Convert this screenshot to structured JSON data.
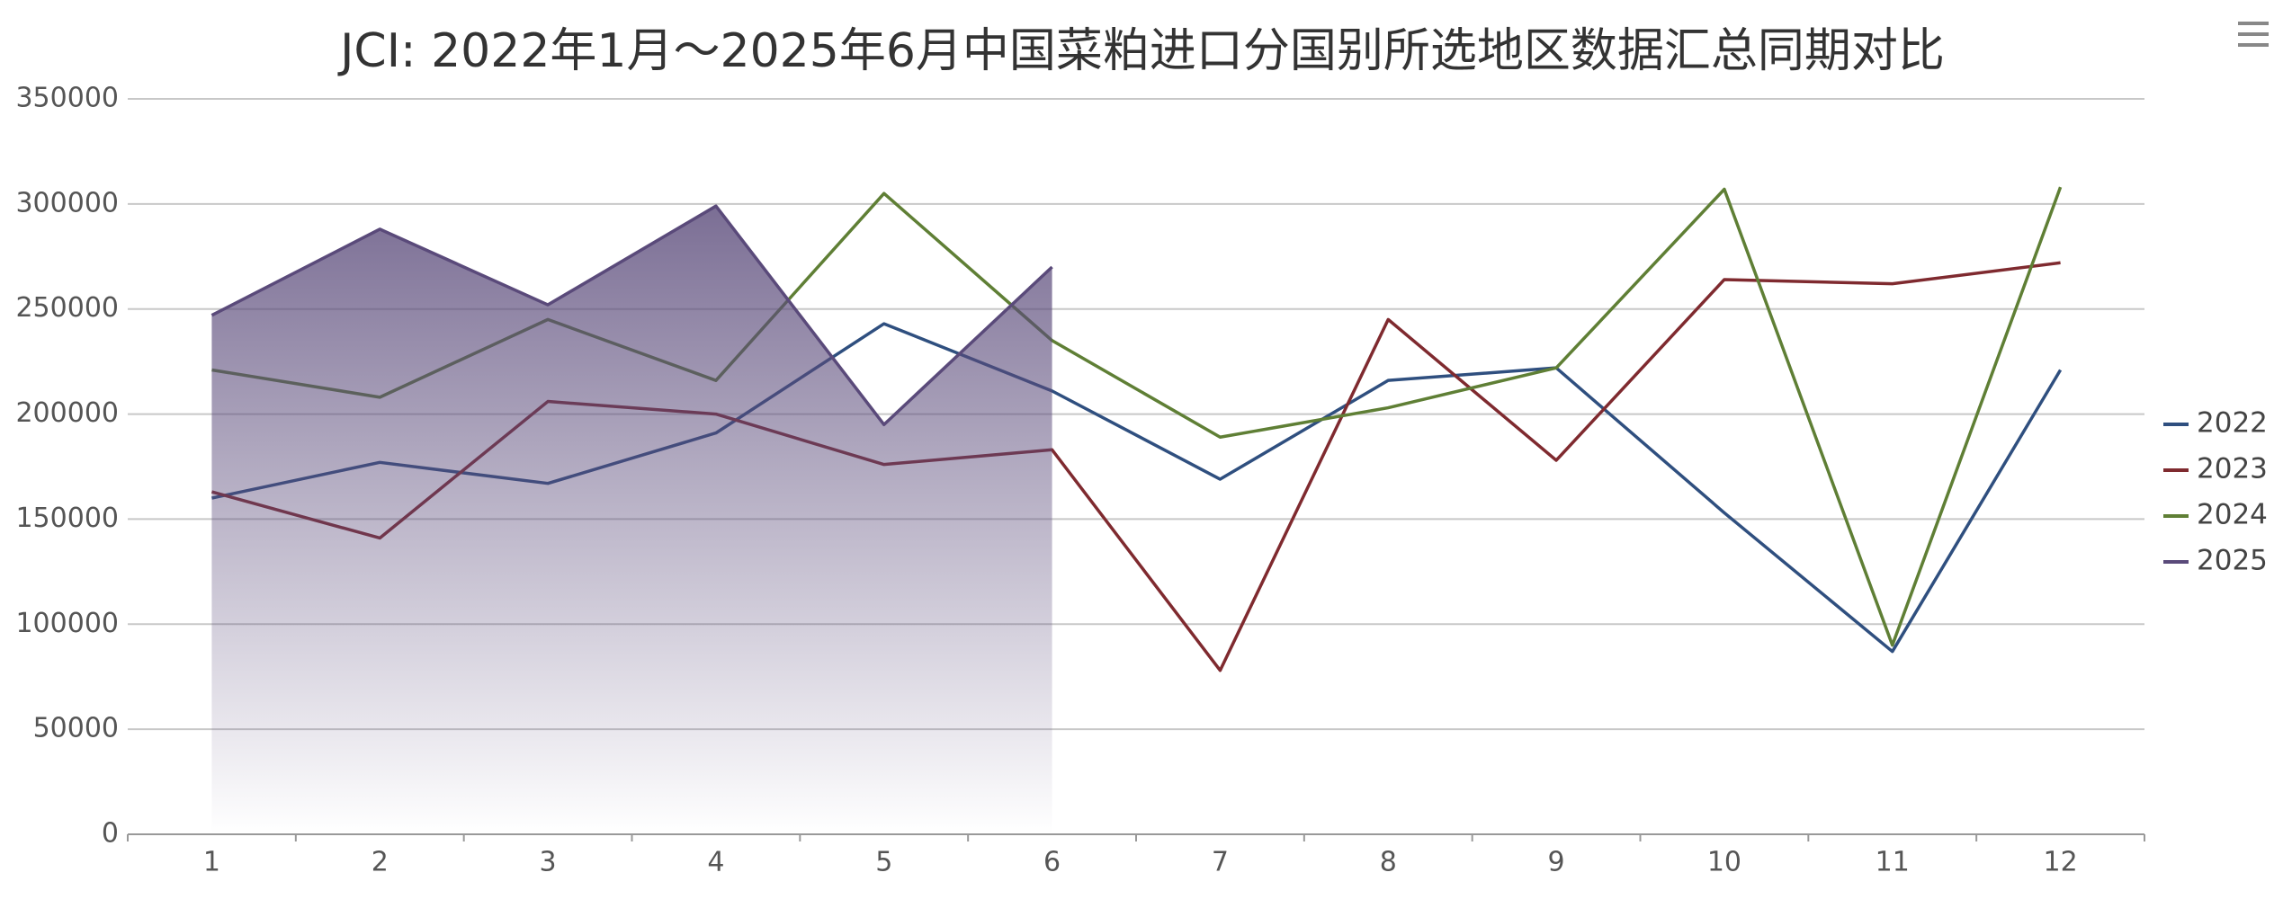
{
  "chart_data": {
    "type": "line",
    "title": "JCI: 2022年1月～2025年6月中国菜粕进口分国别所选地区数据汇总同期对比",
    "categories": [
      "1",
      "2",
      "3",
      "4",
      "5",
      "6",
      "7",
      "8",
      "9",
      "10",
      "11",
      "12"
    ],
    "series": [
      {
        "name": "2022",
        "color": "#2f4f7f",
        "values": [
          160000,
          177000,
          167000,
          191000,
          243000,
          211000,
          169000,
          216000,
          222000,
          153000,
          87000,
          221000
        ]
      },
      {
        "name": "2023",
        "color": "#7f2a2f",
        "values": [
          163000,
          141000,
          206000,
          200000,
          176000,
          183000,
          78000,
          245000,
          178000,
          264000,
          262000,
          272000
        ]
      },
      {
        "name": "2024",
        "color": "#5f7f35",
        "values": [
          221000,
          208000,
          245000,
          216000,
          305000,
          235000,
          189000,
          203000,
          222000,
          307000,
          90000,
          308000
        ]
      },
      {
        "name": "2025",
        "color": "#5a4a7a",
        "area": true,
        "values": [
          247000,
          288000,
          252000,
          299000,
          195000,
          270000,
          null,
          null,
          null,
          null,
          null,
          null
        ]
      }
    ],
    "ylim": [
      0,
      350000
    ],
    "yticks": [
      0,
      50000,
      100000,
      150000,
      200000,
      250000,
      300000,
      350000
    ],
    "grid": true,
    "legend": "right"
  }
}
